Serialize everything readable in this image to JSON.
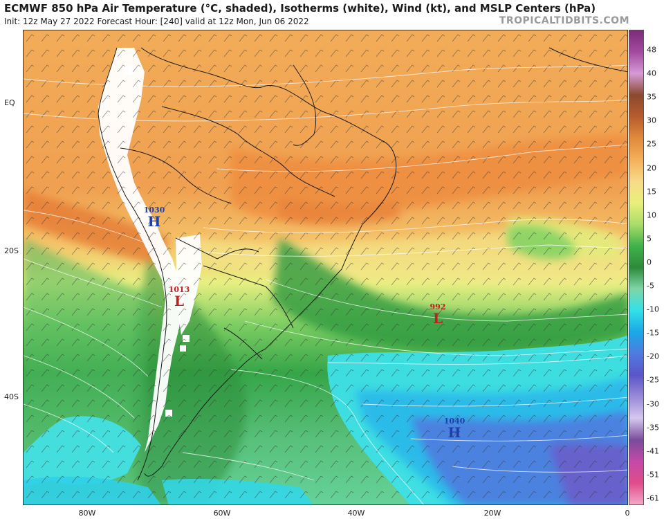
{
  "header": {
    "title": "ECMWF 850 hPa Air Temperature (°C, shaded), Isotherms (white), Wind (kt), and MSLP Centers (hPa)",
    "subtitle": "Init: 12z May 27 2022   Forecast Hour: [240]   valid at 12z Mon, Jun 06 2022",
    "watermark": "TROPICALTIDBITS.COM"
  },
  "axes": {
    "latitude_labels": [
      "EQ",
      "20S",
      "40S"
    ],
    "longitude_labels": [
      "80W",
      "60W",
      "40W",
      "20W",
      "0"
    ]
  },
  "colorbar": {
    "labels": [
      "48",
      "40",
      "35",
      "30",
      "25",
      "20",
      "15",
      "10",
      "5",
      "0",
      "-5",
      "-10",
      "-15",
      "-20",
      "-25",
      "-30",
      "-35",
      "-41",
      "-51",
      "-61"
    ],
    "colors": [
      "#7b2c7a",
      "#a34aa0",
      "#d69ad6",
      "#8a4a2e",
      "#b75c2e",
      "#e08a3c",
      "#f4b05a",
      "#f9d98a",
      "#e8f07a",
      "#a9dd6a",
      "#3fb24a",
      "#2d8a3a",
      "#7fd6a8",
      "#33e0e8",
      "#1aa8e6",
      "#4f7be0",
      "#5a55c8",
      "#9a8ad8",
      "#d4c8ee",
      "#7a4c9c",
      "#c24aa8",
      "#e04c8c",
      "#f2a8c8"
    ]
  },
  "pressure_centers": [
    {
      "id": "high-andes",
      "type": "H",
      "value": "1030"
    },
    {
      "id": "low-argentina",
      "type": "L",
      "value": "1013"
    },
    {
      "id": "low-atlantic",
      "type": "L",
      "value": "992"
    },
    {
      "id": "high-south-atlantic",
      "type": "H",
      "value": "1040"
    }
  ]
}
